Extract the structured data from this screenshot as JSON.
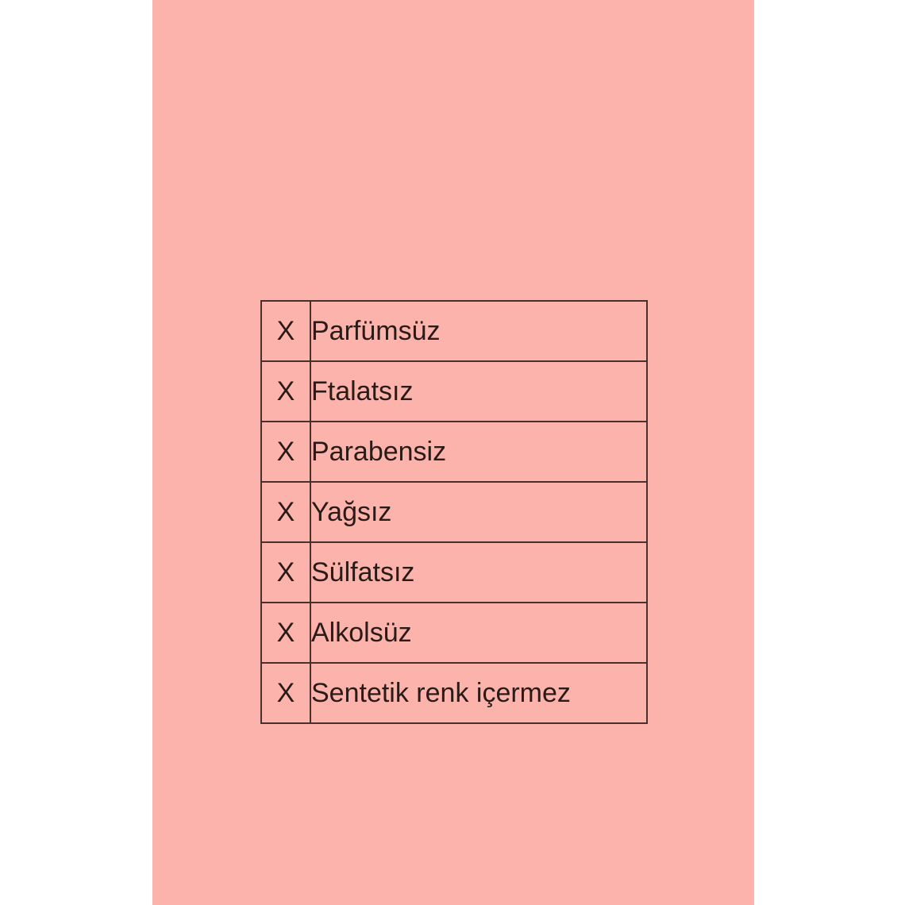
{
  "background_color": "#fcb3ab",
  "claims": [
    {
      "mark": "X",
      "label": "Parfümsüz"
    },
    {
      "mark": "X",
      "label": "Ftalatsız"
    },
    {
      "mark": "X",
      "label": "Parabensiz"
    },
    {
      "mark": "X",
      "label": "Yağsız"
    },
    {
      "mark": "X",
      "label": "Sülfatsız"
    },
    {
      "mark": "X",
      "label": "Alkolsüz"
    },
    {
      "mark": "X",
      "label": "Sentetik renk içermez"
    }
  ]
}
